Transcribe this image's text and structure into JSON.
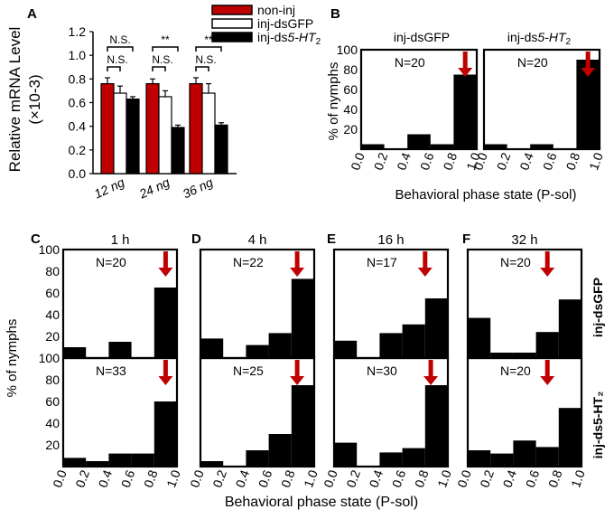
{
  "colors": {
    "red": "#c00000",
    "black": "#000000",
    "white": "#ffffff",
    "arrow": "#c00000"
  },
  "panel_labels": {
    "a": "A",
    "b": "B",
    "c": "C",
    "d": "D",
    "e": "E",
    "f": "F"
  },
  "panel_a": {
    "ylabel": "Relative mRNA Level",
    "ylabel2": "(×10-3)",
    "yticks": [
      "0.0",
      "0.2",
      "0.4",
      "0.6",
      "0.8",
      "1.0",
      "1.2"
    ],
    "legend": [
      "non-inj",
      "inj-dsGFP",
      "inj-ds",
      "5-HT",
      "2"
    ]
  },
  "panel_b": {
    "titles": [
      "inj-dsGFP",
      "inj-ds",
      "5-HT",
      "2"
    ],
    "ylabel": "% of nymphs",
    "xlabel": "Behavioral phase state (P-sol)",
    "yticks": [
      "20",
      "40",
      "60",
      "80",
      "100"
    ],
    "xticks": [
      "0.0",
      "0.2",
      "0.4",
      "0.6",
      "0.8",
      "1.0"
    ]
  },
  "panel_cf": {
    "ylabel": "% of nymphs",
    "xlabel": "Behavioral phase state (P-sol)",
    "yticks_top": [
      "20",
      "40",
      "60",
      "80",
      "100"
    ],
    "yticks_bottom": [
      "20",
      "40",
      "60",
      "80",
      "100"
    ],
    "xticks": [
      "0.0",
      "0.2",
      "0.4",
      "0.6",
      "0.8",
      "1.0"
    ],
    "row_labels": [
      "inj-dsGFP",
      "inj-ds5-HT₂"
    ]
  },
  "chart_data": [
    {
      "type": "bar",
      "panel": "A",
      "categories": [
        "12 ng",
        "24 ng",
        "36 ng"
      ],
      "series": [
        {
          "name": "non-inj",
          "values": [
            0.76,
            0.76,
            0.76
          ],
          "errors": [
            0.05,
            0.04,
            0.05
          ]
        },
        {
          "name": "inj-dsGFP",
          "values": [
            0.68,
            0.65,
            0.68
          ],
          "errors": [
            0.06,
            0.05,
            0.08
          ]
        },
        {
          "name": "inj-ds5-HT2",
          "values": [
            0.63,
            0.39,
            0.41
          ],
          "errors": [
            0.02,
            0.02,
            0.02
          ]
        }
      ],
      "significance": [
        {
          "category": "12 ng",
          "upper": "N.S.",
          "lower": "N.S."
        },
        {
          "category": "24 ng",
          "upper": "**",
          "lower": "N.S."
        },
        {
          "category": "36 ng",
          "upper": "**",
          "lower": "N.S."
        }
      ],
      "ylabel": "Relative mRNA Level (×10-3)",
      "ylim": [
        0,
        1.2
      ]
    },
    {
      "type": "bar",
      "panel": "B",
      "subplots": [
        {
          "title": "inj-dsGFP",
          "n": "N=20",
          "values": [
            5,
            0,
            15,
            5,
            75
          ],
          "arrow": 0.9
        },
        {
          "title": "inj-ds5-HT2",
          "n": "N=20",
          "values": [
            5,
            0,
            5,
            0,
            90
          ],
          "arrow": 0.9
        }
      ],
      "bin_edges": [
        0.0,
        0.2,
        0.4,
        0.6,
        0.8,
        1.0
      ],
      "xlabel": "Behavioral phase state (P-sol)",
      "ylabel": "% of nymphs",
      "ylim": [
        0,
        100
      ]
    },
    {
      "type": "bar",
      "panel": "C-F",
      "bin_edges": [
        0.0,
        0.2,
        0.4,
        0.6,
        0.8,
        1.0
      ],
      "xlabel": "Behavioral phase state (P-sol)",
      "ylabel": "% of nymphs",
      "ylim": [
        0,
        100
      ],
      "columns": [
        {
          "panel": "C",
          "time": "1 h",
          "dsGFP": {
            "n": "N=20",
            "values": [
              10,
              0,
              15,
              0,
              65
            ],
            "arrow": 0.9
          },
          "ds5HT2": {
            "n": "N=33",
            "values": [
              8,
              5,
              12,
              12,
              60
            ],
            "arrow": 0.9
          }
        },
        {
          "panel": "D",
          "time": "4 h",
          "dsGFP": {
            "n": "N=22",
            "values": [
              18,
              0,
              12,
              23,
              73
            ],
            "arrow": 0.85
          },
          "ds5HT2": {
            "n": "N=25",
            "values": [
              5,
              0,
              15,
              30,
              75
            ],
            "arrow": 0.85
          }
        },
        {
          "panel": "E",
          "time": "16 h",
          "dsGFP": {
            "n": "N=17",
            "values": [
              16,
              0,
              23,
              31,
              55
            ],
            "arrow": 0.8
          },
          "ds5HT2": {
            "n": "N=30",
            "values": [
              22,
              0,
              13,
              17,
              75
            ],
            "arrow": 0.85
          }
        },
        {
          "panel": "F",
          "time": "32 h",
          "dsGFP": {
            "n": "N=20",
            "values": [
              37,
              5,
              5,
              24,
              54
            ],
            "arrow": 0.7
          },
          "ds5HT2": {
            "n": "N=20",
            "values": [
              15,
              12,
              24,
              18,
              54
            ],
            "arrow": 0.7
          }
        }
      ]
    }
  ]
}
